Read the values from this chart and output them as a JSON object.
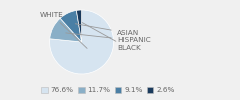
{
  "labels": [
    "WHITE",
    "HISPANIC",
    "ASIAN",
    "BLACK"
  ],
  "values": [
    76.6,
    11.7,
    9.1,
    2.6
  ],
  "colors": [
    "#d6e4f0",
    "#8aafc7",
    "#4a7fa5",
    "#1a3a5c"
  ],
  "legend_labels": [
    "76.6%",
    "11.7%",
    "9.1%",
    "2.6%"
  ],
  "label_fontsize": 5.2,
  "legend_fontsize": 5.2,
  "startangle": 90,
  "bg_color": "#f0f0f0",
  "text_color": "#666666",
  "arrow_color": "#999999"
}
